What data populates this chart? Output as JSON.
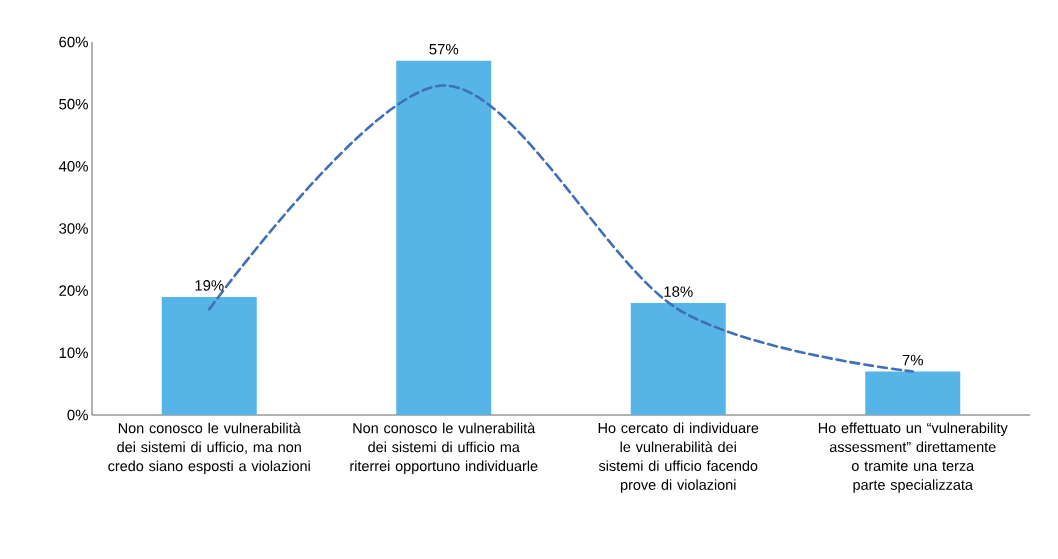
{
  "chart_data": {
    "type": "bar",
    "categories": [
      "Non conosco le vulnerabilità dei sistemi di ufficio, ma non credo siano esposti a violazioni",
      "Non conosco le vulnerabilità dei sistemi di ufficio ma riterrei opportuno individuarle",
      "Ho cercato di individuare le vulnerabilità dei sistemi di ufficio facendo prove di violazioni",
      "Ho effettuato un “vulnerability assessment” direttamente o tramite una terza parte specializzata"
    ],
    "series": [
      {
        "color": "#56b4e6",
        "values": [
          19,
          57,
          18,
          7
        ],
        "value_labels": [
          "19%",
          "57%",
          "18%",
          "7%"
        ]
      },
      {
        "type": "line",
        "color": "#3f6fb8",
        "line_style": "dashed",
        "values": [
          17,
          53,
          17,
          7
        ]
      }
    ],
    "ylim": [
      0,
      60
    ],
    "yticks": [
      {
        "value": 0,
        "label": "0%"
      },
      {
        "value": 10,
        "label": "10%"
      },
      {
        "value": 20,
        "label": "20%"
      },
      {
        "value": 30,
        "label": "30%"
      },
      {
        "value": 40,
        "label": "40%"
      },
      {
        "value": 50,
        "label": "50%"
      },
      {
        "value": 60,
        "label": "60%"
      }
    ],
    "grid": false
  }
}
